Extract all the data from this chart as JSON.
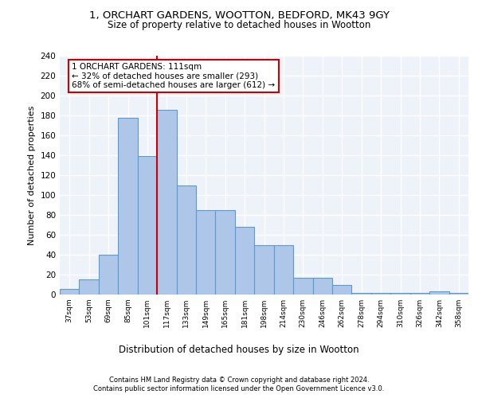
{
  "title1": "1, ORCHART GARDENS, WOOTTON, BEDFORD, MK43 9GY",
  "title2": "Size of property relative to detached houses in Wootton",
  "xlabel": "Distribution of detached houses by size in Wootton",
  "ylabel": "Number of detached properties",
  "bins": [
    "37sqm",
    "53sqm",
    "69sqm",
    "85sqm",
    "101sqm",
    "117sqm",
    "133sqm",
    "149sqm",
    "165sqm",
    "181sqm",
    "198sqm",
    "214sqm",
    "230sqm",
    "246sqm",
    "262sqm",
    "278sqm",
    "294sqm",
    "310sqm",
    "326sqm",
    "342sqm",
    "358sqm"
  ],
  "values": [
    6,
    15,
    40,
    178,
    139,
    186,
    110,
    85,
    85,
    68,
    50,
    50,
    17,
    17,
    10,
    2,
    2,
    2,
    2,
    3,
    2
  ],
  "bar_color": "#aec6e8",
  "bar_edge_color": "#5b9bd5",
  "vline_x": 4.5,
  "annotation_title": "1 ORCHART GARDENS: 111sqm",
  "annotation_line1": "← 32% of detached houses are smaller (293)",
  "annotation_line2": "68% of semi-detached houses are larger (612) →",
  "annotation_box_color": "#ffffff",
  "annotation_box_edge_color": "#cc0000",
  "vline_color": "#cc0000",
  "ylim": [
    0,
    240
  ],
  "yticks": [
    0,
    20,
    40,
    60,
    80,
    100,
    120,
    140,
    160,
    180,
    200,
    220,
    240
  ],
  "footer1": "Contains HM Land Registry data © Crown copyright and database right 2024.",
  "footer2": "Contains public sector information licensed under the Open Government Licence v3.0.",
  "bg_color": "#eef2f9",
  "grid_color": "#ffffff"
}
